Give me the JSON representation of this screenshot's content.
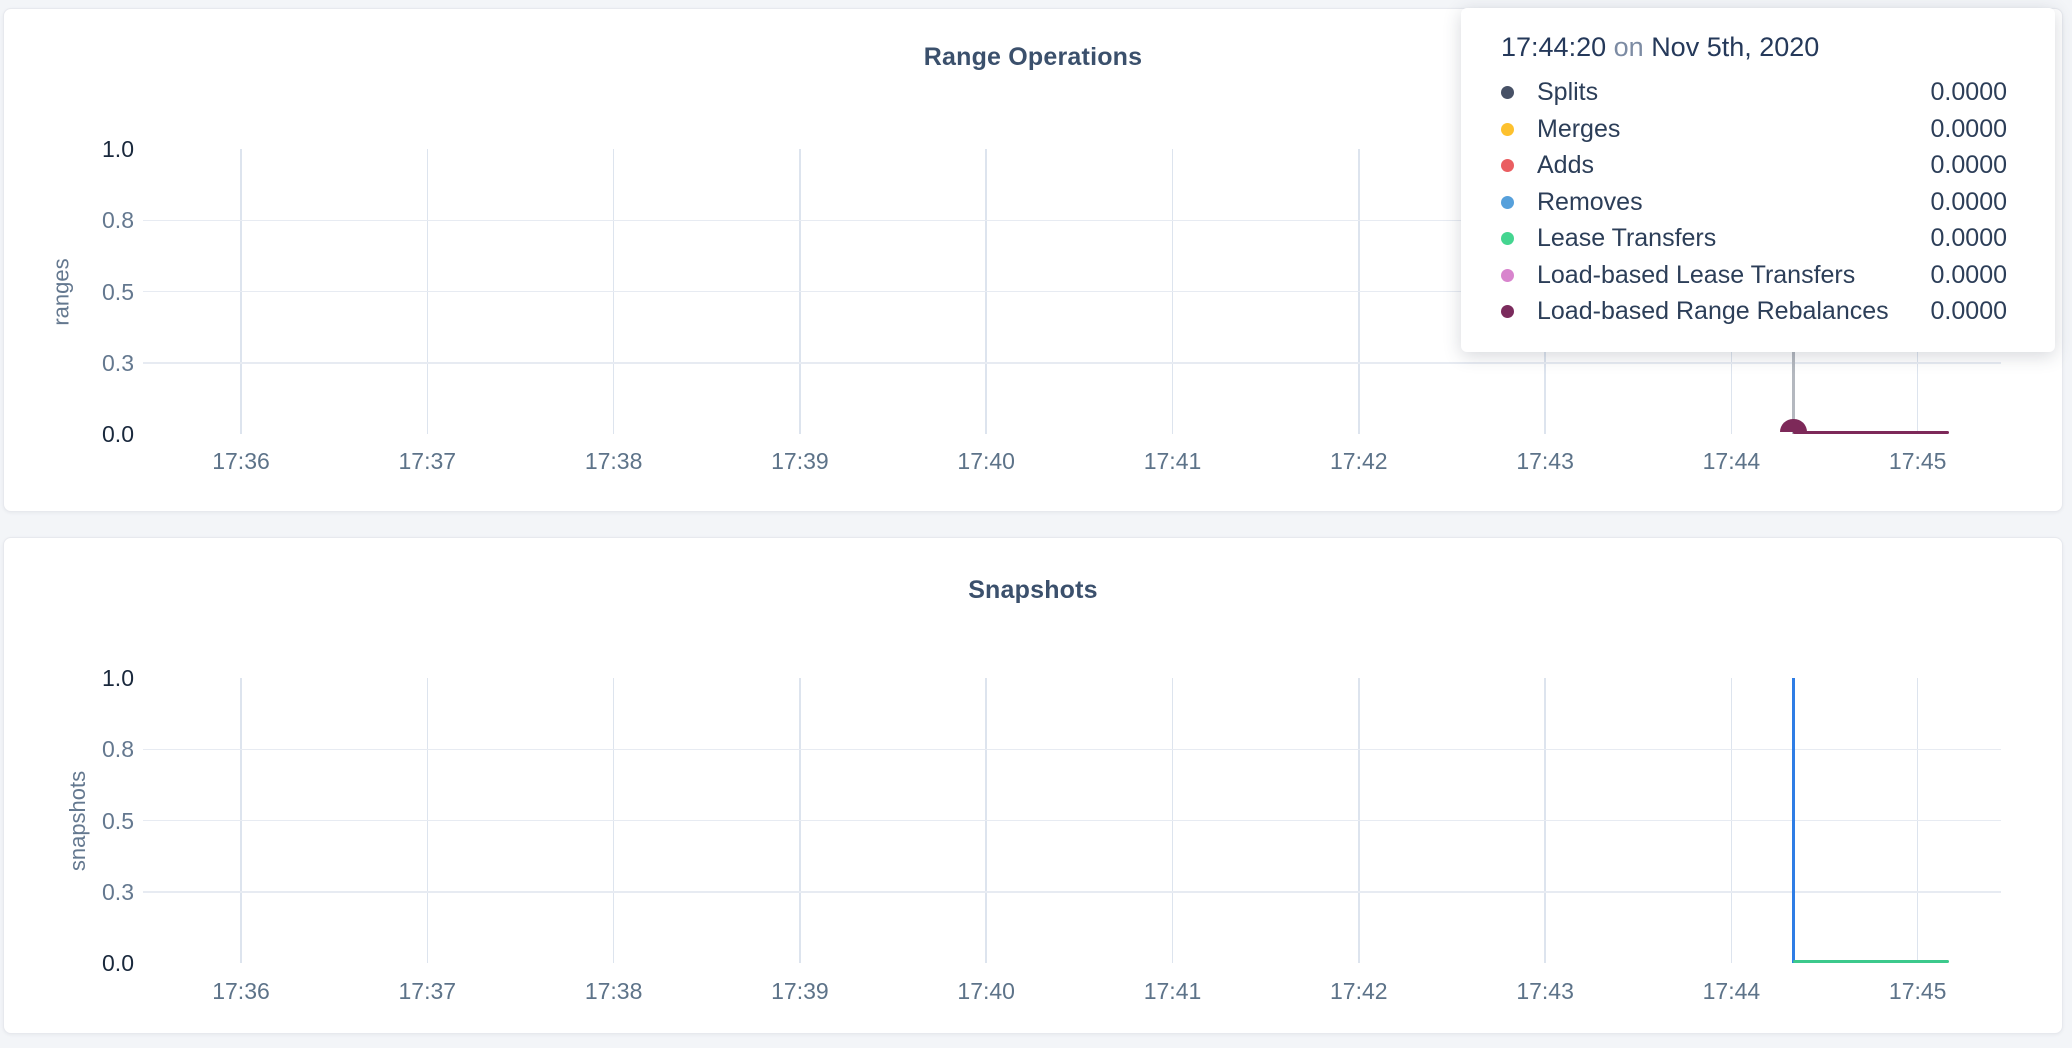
{
  "page": {
    "background": "#f3f5f8"
  },
  "tooltip": {
    "time": "17:44:20",
    "on_word": "on",
    "date": "Nov 5th, 2020",
    "rows": [
      {
        "label": "Splits",
        "value": "0.0000",
        "color": "#475166"
      },
      {
        "label": "Merges",
        "value": "0.0000",
        "color": "#fdc12e"
      },
      {
        "label": "Adds",
        "value": "0.0000",
        "color": "#ea5e61"
      },
      {
        "label": "Removes",
        "value": "0.0000",
        "color": "#56a0db"
      },
      {
        "label": "Lease Transfers",
        "value": "0.0000",
        "color": "#44d590"
      },
      {
        "label": "Load-based Lease Transfers",
        "value": "0.0000",
        "color": "#d884cd"
      },
      {
        "label": "Load-based Range Rebalances",
        "value": "0.0000",
        "color": "#7b2b5d"
      }
    ]
  },
  "chart_data": [
    {
      "type": "line",
      "title": "Range Operations",
      "ylabel": "ranges",
      "ylim": [
        0.0,
        1.0
      ],
      "yticks": [
        "1.0",
        "0.8",
        "0.5",
        "0.3",
        "0.0"
      ],
      "xticks": [
        "17:36",
        "17:37",
        "17:38",
        "17:39",
        "17:40",
        "17:41",
        "17:42",
        "17:43",
        "17:44",
        "17:45"
      ],
      "grid": true,
      "legend_position": "hover-tooltip",
      "hover": {
        "time": "17:44:20",
        "minute_offset_from_17_36": 8.333
      },
      "series": [
        {
          "name": "Splits",
          "color": "#475166",
          "value_at_hover": 0.0
        },
        {
          "name": "Merges",
          "color": "#fdc12e",
          "value_at_hover": 0.0
        },
        {
          "name": "Adds",
          "color": "#ea5e61",
          "value_at_hover": 0.0
        },
        {
          "name": "Removes",
          "color": "#56a0db",
          "value_at_hover": 0.0
        },
        {
          "name": "Lease Transfers",
          "color": "#44d590",
          "value_at_hover": 0.0
        },
        {
          "name": "Load-based Lease Transfers",
          "color": "#d884cd",
          "value_at_hover": 0.0
        },
        {
          "name": "Load-based Range Rebalances",
          "color": "#7b2b5d",
          "value_at_hover": 0.0
        }
      ],
      "overlays": [
        {
          "kind": "crosshair",
          "minute_offset": 8.333,
          "color": "#b4b8bf"
        },
        {
          "kind": "flatline",
          "from_minute": 8.333,
          "to_minute": 9.17,
          "value": 0.0,
          "color": "#7d2959",
          "thickness": 3.5
        },
        {
          "kind": "halfdot",
          "minute_offset": 8.333,
          "value": 0.0,
          "color": "#7d2959",
          "radius": 13.5
        }
      ]
    },
    {
      "type": "line",
      "title": "Snapshots",
      "ylabel": "snapshots",
      "ylim": [
        0.0,
        1.0
      ],
      "yticks": [
        "1.0",
        "0.8",
        "0.5",
        "0.3",
        "0.0"
      ],
      "xticks": [
        "17:36",
        "17:37",
        "17:38",
        "17:39",
        "17:40",
        "17:41",
        "17:42",
        "17:43",
        "17:44",
        "17:45"
      ],
      "grid": true,
      "series": [
        {
          "name": "blue-series",
          "color": "#2e7de5",
          "points": [
            [
              "17:44:20",
              1.0
            ],
            [
              "17:44:20",
              0.0
            ]
          ]
        },
        {
          "name": "green-series",
          "color": "#3cc98c",
          "points": [
            [
              "17:44:20",
              0.0
            ],
            [
              "17:45:10",
              0.0
            ]
          ]
        }
      ],
      "overlays": [
        {
          "kind": "spike",
          "minute_offset": 8.333,
          "from_value": 0.0,
          "to_value": 1.0,
          "color": "#2e7de5",
          "thickness": 3.5
        },
        {
          "kind": "flatline",
          "from_minute": 8.333,
          "to_minute": 9.17,
          "value": 0.0,
          "color": "#3cc98c",
          "thickness": 3
        }
      ]
    }
  ]
}
